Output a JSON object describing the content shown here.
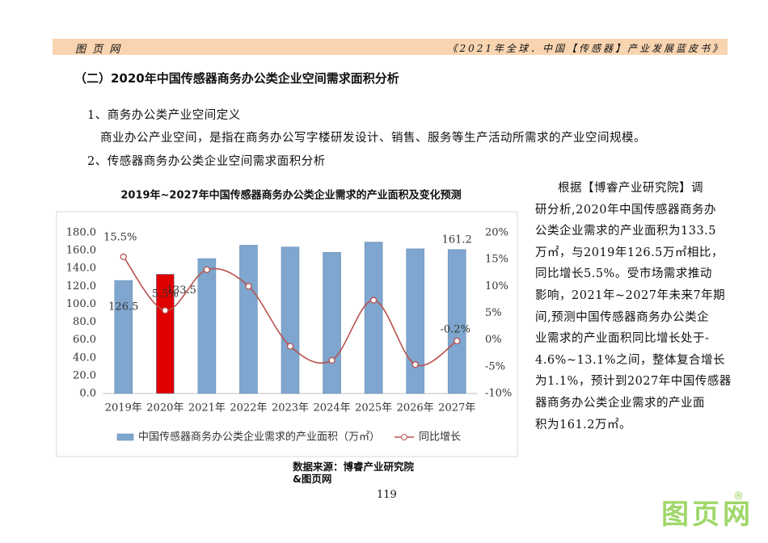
{
  "header": {
    "left": "图 页 网",
    "right": "《2021年全球．中国【传感器】产业发展蓝皮书》"
  },
  "heading": "（二）2020年中国传感器商务办公类企业空间需求面积分析",
  "paragraphs": [
    "1、商务办公类产业空间定义",
    "商业办公产业空间，是指在商务办公写字楼研发设计、销售、服务等生产活动所需求的产业空间规模。",
    "2、传感器商务办公类企业空间需求面积分析"
  ],
  "chart_data": {
    "type": "combo",
    "title": "2019年~2027年中国传感器商务办公类企业需求的产业面积及变化预测",
    "categories": [
      "2019年",
      "2020年",
      "2021年",
      "2022年",
      "2023年",
      "2024年",
      "2025年",
      "2026年",
      "2027年"
    ],
    "series": [
      {
        "name": "中国传感器商务办公类企业需求的产业面积（万㎡）",
        "type": "bar",
        "color": "#7ea6ce",
        "colors": [
          "#7ea6ce",
          "#e00000",
          "#7ea6ce",
          "#7ea6ce",
          "#7ea6ce",
          "#7ea6ce",
          "#7ea6ce",
          "#7ea6ce",
          "#7ea6ce"
        ],
        "values": [
          126.5,
          133.5,
          151,
          166,
          164,
          158,
          169.5,
          162,
          161.2
        ],
        "value_labels": [
          "126.5",
          "133.5",
          null,
          null,
          null,
          null,
          null,
          null,
          "161.2"
        ]
      },
      {
        "name": "同比增长",
        "type": "line",
        "axis": "y2",
        "color": "#b8524f",
        "values": [
          15.5,
          5.5,
          13.1,
          10,
          -1.2,
          -3.8,
          7.4,
          -4.6,
          -0.2
        ],
        "value_labels": [
          "15.5%",
          "5.5%",
          null,
          null,
          null,
          null,
          null,
          null,
          "-0.2%"
        ]
      }
    ],
    "ylim": [
      0,
      180
    ],
    "yticks": [
      {
        "value": 0,
        "label": "0.0"
      },
      {
        "value": 20,
        "label": "20.0"
      },
      {
        "value": 40,
        "label": "40.0"
      },
      {
        "value": 60,
        "label": "60.0"
      },
      {
        "value": 80,
        "label": "80.0"
      },
      {
        "value": 100,
        "label": "100.0"
      },
      {
        "value": 120,
        "label": "120.0"
      },
      {
        "value": 140,
        "label": "140.0"
      },
      {
        "value": 160,
        "label": "160.0"
      },
      {
        "value": 180,
        "label": "180.0"
      }
    ],
    "y2lim": [
      -10,
      20
    ],
    "y2ticks": [
      {
        "value": -10,
        "label": "-10%"
      },
      {
        "value": -5,
        "label": "-5%"
      },
      {
        "value": 0,
        "label": "0%"
      },
      {
        "value": 5,
        "label": "5%"
      },
      {
        "value": 10,
        "label": "10%"
      },
      {
        "value": 15,
        "label": "15%"
      },
      {
        "value": 20,
        "label": "20%"
      }
    ],
    "grid": false,
    "legend": "bottom"
  },
  "source": [
    "数据来源：博睿产业研究院",
    "&图页网"
  ],
  "side_text": [
    "根据【博睿产业研究院】调",
    "研分析,2020年中国传感器商务办",
    "公类企业需求的产业面积为133.5",
    "万㎡，与2019年126.5万㎡相比，",
    "同比增长5.5%。受市场需求推动",
    "影响，2021年~2027年未来7年期",
    "间,预测中国传感器商务办公类企",
    "业需求的产业面积同比增长处于-",
    "4.6%~13.1%之间，整体复合增长",
    "为1.1%，预计到2027年中国传感器",
    "器商务办公类企业需求的产业面",
    "积为161.2万㎡。"
  ],
  "page_number": "119",
  "watermark": {
    "text": "图页网",
    "mark": "®"
  }
}
